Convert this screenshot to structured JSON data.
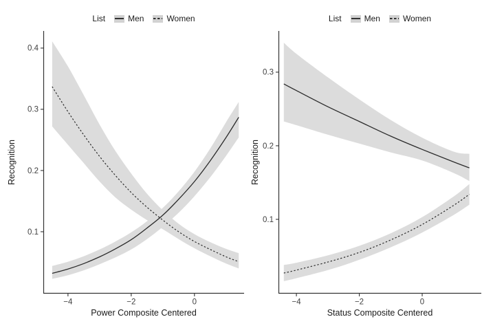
{
  "figure": {
    "background": "#ffffff"
  },
  "colors": {
    "line": "#2b2b2b",
    "band": "#dcdcdc",
    "axis": "#333333",
    "tick_label": "#404040",
    "legend_key_bg": "#d2d2d2"
  },
  "chart_data": [
    {
      "type": "line",
      "panel": "left",
      "title": "",
      "xlabel": "Power Composite Centered",
      "ylabel": "Recognition",
      "xlim": [
        -4.78,
        1.57
      ],
      "ylim": [
        0,
        0.428
      ],
      "grid": false,
      "x_ticks": [
        {
          "v": -4,
          "label": "−4"
        },
        {
          "v": -2,
          "label": "−2"
        },
        {
          "v": 0,
          "label": "0"
        }
      ],
      "y_ticks": [
        {
          "v": 0.1,
          "label": "0.1"
        },
        {
          "v": 0.2,
          "label": "0.2"
        },
        {
          "v": 0.3,
          "label": "0.3"
        },
        {
          "v": 0.4,
          "label": "0.4"
        }
      ],
      "legend": {
        "title": "List",
        "position": "top"
      },
      "series": [
        {
          "name": "Men",
          "style": "solid",
          "x": [
            -4.5,
            -4,
            -3.5,
            -3,
            -2.5,
            -2,
            -1.5,
            -1,
            -0.5,
            0,
            0.5,
            1,
            1.4
          ],
          "y": [
            0.032,
            0.039,
            0.048,
            0.059,
            0.072,
            0.087,
            0.106,
            0.127,
            0.153,
            0.182,
            0.216,
            0.254,
            0.287
          ],
          "ci_hi": [
            0.044,
            0.051,
            0.06,
            0.071,
            0.084,
            0.099,
            0.117,
            0.139,
            0.166,
            0.198,
            0.236,
            0.279,
            0.312
          ],
          "ci_lo": [
            0.023,
            0.029,
            0.037,
            0.047,
            0.058,
            0.071,
            0.088,
            0.108,
            0.131,
            0.158,
            0.189,
            0.224,
            0.254
          ]
        },
        {
          "name": "Women",
          "style": "dashed",
          "x": [
            -4.5,
            -4,
            -3.5,
            -3,
            -2.5,
            -2,
            -1.5,
            -1,
            -0.5,
            0,
            0.5,
            1,
            1.4
          ],
          "y": [
            0.337,
            0.296,
            0.258,
            0.223,
            0.192,
            0.164,
            0.14,
            0.119,
            0.1,
            0.084,
            0.071,
            0.059,
            0.051
          ],
          "ci_hi": [
            0.411,
            0.37,
            0.323,
            0.275,
            0.232,
            0.195,
            0.162,
            0.135,
            0.113,
            0.096,
            0.083,
            0.072,
            0.065
          ],
          "ci_lo": [
            0.272,
            0.242,
            0.212,
            0.182,
            0.156,
            0.136,
            0.119,
            0.104,
            0.088,
            0.073,
            0.06,
            0.048,
            0.04
          ]
        }
      ]
    },
    {
      "type": "line",
      "panel": "right",
      "title": "",
      "xlabel": "Status Composite Centered",
      "ylabel": "Recognition",
      "xlim": [
        -4.57,
        1.88
      ],
      "ylim": [
        0,
        0.356
      ],
      "grid": false,
      "x_ticks": [
        {
          "v": -4,
          "label": "−4"
        },
        {
          "v": -2,
          "label": "−2"
        },
        {
          "v": 0,
          "label": "0"
        }
      ],
      "y_ticks": [
        {
          "v": 0.1,
          "label": "0.1"
        },
        {
          "v": 0.2,
          "label": "0.2"
        },
        {
          "v": 0.3,
          "label": "0.3"
        }
      ],
      "legend": {
        "title": "List",
        "position": "top"
      },
      "series": [
        {
          "name": "Men",
          "style": "solid",
          "x": [
            -4.4,
            -4,
            -3,
            -2,
            -1,
            0,
            1,
            1.5
          ],
          "y": [
            0.284,
            0.275,
            0.253,
            0.233,
            0.213,
            0.195,
            0.178,
            0.17
          ],
          "ci_hi": [
            0.34,
            0.325,
            0.293,
            0.263,
            0.235,
            0.211,
            0.192,
            0.189
          ],
          "ci_lo": [
            0.233,
            0.228,
            0.215,
            0.203,
            0.191,
            0.18,
            0.163,
            0.152
          ]
        },
        {
          "name": "Women",
          "style": "dashed",
          "x": [
            -4.4,
            -4,
            -3,
            -2,
            -1,
            0,
            1,
            1.5
          ],
          "y": [
            0.027,
            0.031,
            0.042,
            0.055,
            0.072,
            0.093,
            0.119,
            0.134
          ],
          "ci_hi": [
            0.038,
            0.041,
            0.051,
            0.064,
            0.081,
            0.103,
            0.131,
            0.148
          ],
          "ci_lo": [
            0.016,
            0.02,
            0.031,
            0.045,
            0.062,
            0.082,
            0.106,
            0.12
          ]
        }
      ]
    }
  ]
}
